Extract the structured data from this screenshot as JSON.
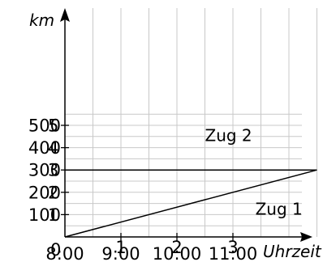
{
  "chart_data": {
    "type": "line",
    "ylabel": "km",
    "xlabel": "Uhrzeit",
    "x_ticks": [
      "8:00",
      "9:00",
      "10:00",
      "11:00"
    ],
    "y_ticks": [
      "100",
      "200",
      "300",
      "400",
      "500"
    ],
    "y_tick_overlay": [
      "1",
      "2",
      "3",
      "4",
      "5"
    ],
    "origin_label": "0",
    "x_tick_overlay": [
      "1",
      "2",
      "3"
    ],
    "xlim_hours": [
      8,
      12.5
    ],
    "ylim": [
      0,
      500
    ],
    "grid": true,
    "series": [
      {
        "name": "Zug 1",
        "points": [
          [
            8,
            0
          ],
          [
            12.5,
            300
          ]
        ]
      },
      {
        "name": "Zug 2",
        "points": [
          [
            8,
            300
          ],
          [
            12.5,
            300
          ]
        ]
      }
    ],
    "annotations": [
      {
        "text": "Zug 2",
        "x": 10.5,
        "y": 430
      },
      {
        "text": "Zug 1",
        "x": 11.4,
        "y": 100
      }
    ]
  }
}
